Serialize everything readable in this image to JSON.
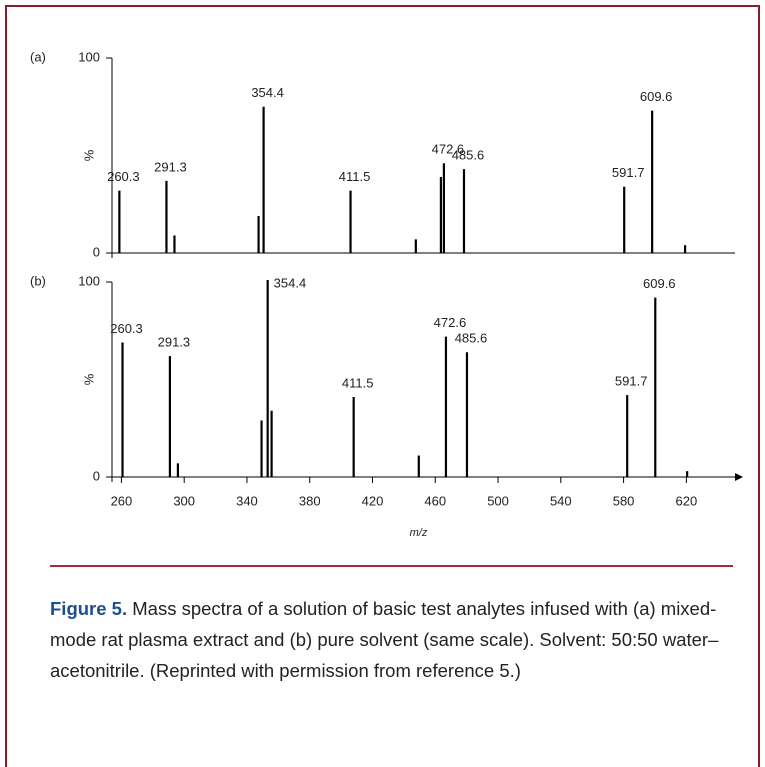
{
  "chart_data": [
    {
      "type": "spectrum",
      "panel_label": "(a)",
      "ylabel": "%",
      "ylim": [
        0,
        100
      ],
      "yticks": [
        0,
        100
      ],
      "xlim": [
        254,
        651
      ],
      "series": [
        {
          "color": "#000000",
          "x": [
            258.7,
            288.7,
            293.8,
            347.4,
            350.6,
            406.0,
            447.6,
            463.6,
            465.5,
            478.3,
            580.4,
            598.2,
            619.2
          ],
          "values": [
            32,
            37,
            9,
            19,
            75,
            32,
            7,
            39,
            46,
            43,
            34,
            73,
            4
          ],
          "x_labels": [
            "260.3",
            "291.3",
            null,
            null,
            "354.4",
            "411.5",
            null,
            null,
            "472.6",
            "485.6",
            "591.7",
            "609.6",
            null
          ]
        }
      ]
    },
    {
      "type": "spectrum",
      "panel_label": "(b)",
      "ylabel": "%",
      "ylim": [
        0,
        100
      ],
      "yticks": [
        0,
        100
      ],
      "xlim": [
        254,
        651
      ],
      "xticks": [
        260,
        300,
        340,
        380,
        420,
        460,
        500,
        540,
        580,
        620
      ],
      "xlabel": "m/z",
      "series": [
        {
          "color": "#000000",
          "x": [
            260.7,
            290.9,
            296.0,
            349.3,
            353.2,
            355.7,
            408.0,
            449.5,
            466.8,
            480.2,
            582.3,
            600.2,
            620.5
          ],
          "values": [
            69,
            62,
            7,
            29,
            101,
            34,
            41,
            11,
            72,
            64,
            42,
            92,
            3
          ],
          "x_labels": [
            "260.3",
            "291.3",
            null,
            null,
            "354.4",
            null,
            "411.5",
            null,
            "472.6",
            "485.6",
            "591.7",
            "609.6",
            null
          ]
        }
      ]
    }
  ],
  "caption": {
    "label": "Figure 5.",
    "text": " Mass spectra of a solution of basic test analytes infused with (a) mixed-mode rat plasma extract and (b) pure solvent (same scale). Solvent: 50:50 water–acetonitrile. (Reprinted with permission from reference 5.)"
  }
}
